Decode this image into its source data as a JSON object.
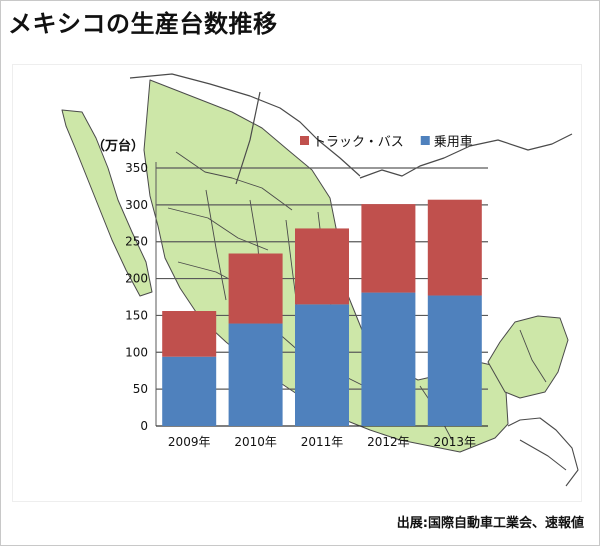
{
  "title": "メキシコの生産台数推移",
  "source": "出展:国際自動車工業会、速報値",
  "chart_data": {
    "type": "bar",
    "stacked": true,
    "unit_label": "（万台）",
    "categories": [
      "2009年",
      "2010年",
      "2011年",
      "2012年",
      "2013年"
    ],
    "series": [
      {
        "name": "乗用車",
        "color": "#4f81bd",
        "values": [
          94,
          139,
          165,
          181,
          177
        ]
      },
      {
        "name": "トラック・バス",
        "color": "#c0504d",
        "values": [
          62,
          95,
          103,
          120,
          130
        ]
      }
    ],
    "legend_order": [
      "トラック・バス",
      "乗用車"
    ],
    "legend_position": "top-right",
    "ylim": [
      0,
      350
    ],
    "yticks": [
      0,
      50,
      100,
      150,
      200,
      250,
      300,
      350
    ],
    "grid": true,
    "background": "map-of-mexico",
    "colors": {
      "land": "#cde7a8",
      "border": "#4a4a4a",
      "gridline": "#5a5a5a"
    }
  }
}
